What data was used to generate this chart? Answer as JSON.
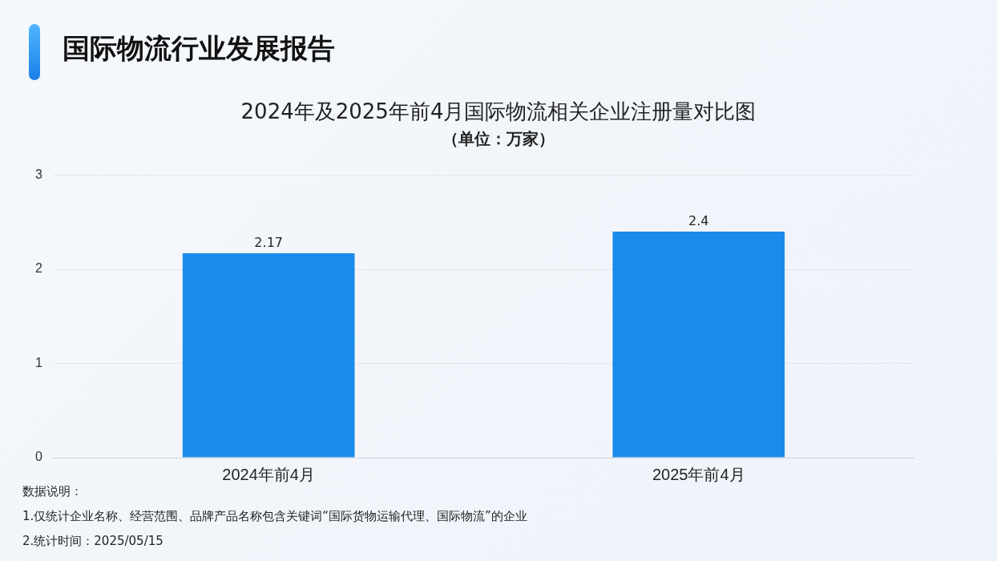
{
  "chart_data": {
    "type": "bar",
    "title": "国际物流行业发展报告",
    "subtitle": "2024年及2025年前4月国际物流相关企业注册量对比图",
    "ylabel": "（单位：万家）",
    "categories": [
      "2024年前4月",
      "2025年前4月"
    ],
    "values": [
      2.17,
      2.4
    ],
    "color": "#1a8bea",
    "ylim": [
      0,
      3
    ],
    "yticks": [
      0,
      1,
      2,
      3
    ],
    "grid": "y",
    "data_labels": true,
    "annotations": [
      "数据说明：",
      "1.仅统计企业名称、经营范围、品牌产品名称包含关键词“国际货物运输代理、国际物流”的企业",
      "2.统计时间：2025/05/15"
    ]
  }
}
